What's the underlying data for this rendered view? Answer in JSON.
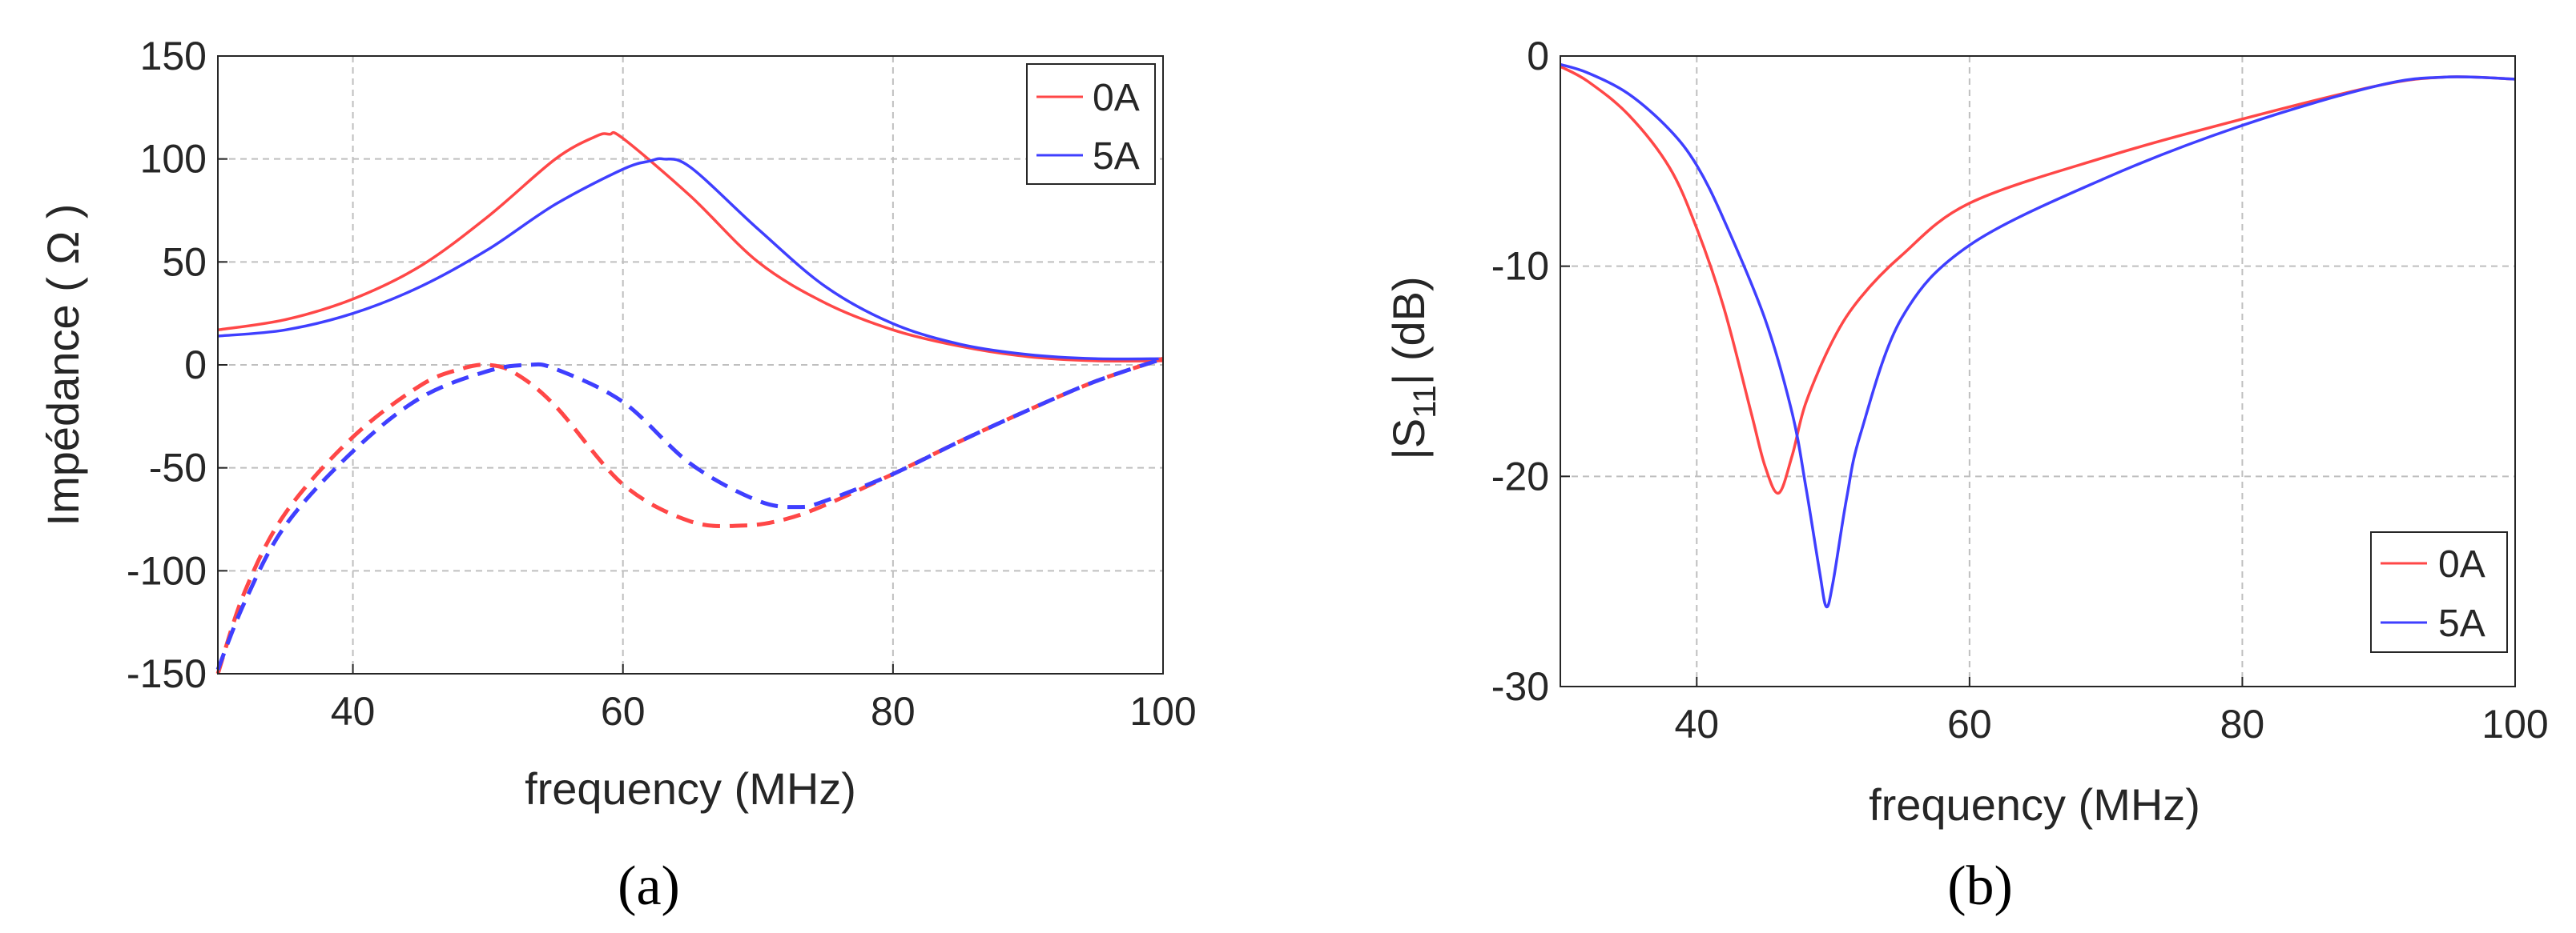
{
  "colors": {
    "series_0A": "#ff4747",
    "series_5A": "#3f3fff",
    "grid": "#bfbfbf",
    "axis": "#262626"
  },
  "chart_data": [
    {
      "type": "line",
      "panel_label": "(a)",
      "title": "",
      "xlabel": "frequency (MHz)",
      "ylabel": "Impédance ( Ω )",
      "xlim": [
        30,
        100
      ],
      "ylim": [
        -150,
        150
      ],
      "xticks": [
        40,
        60,
        80,
        100
      ],
      "xtick_labels": [
        "40",
        "60",
        "80",
        "100"
      ],
      "yticks": [
        150,
        100,
        50,
        0,
        -50,
        -100,
        -150
      ],
      "ytick_labels": [
        "150",
        "100",
        "50",
        "0",
        "-50",
        "-100",
        "-150"
      ],
      "grid": true,
      "legend": {
        "position": "top-right",
        "entries": [
          "0A",
          "5A"
        ]
      },
      "series": [
        {
          "name": "0A",
          "style": "solid",
          "color": "#ff4747",
          "x": [
            30,
            35,
            40,
            45,
            50,
            55,
            58,
            59,
            60,
            65,
            70,
            75,
            80,
            85,
            90,
            95,
            100
          ],
          "y": [
            17,
            22,
            32,
            48,
            72,
            100,
            111,
            112,
            110,
            82,
            50,
            30,
            17,
            9,
            4,
            2,
            2
          ]
        },
        {
          "name": "5A",
          "style": "solid",
          "color": "#3f3fff",
          "x": [
            30,
            35,
            40,
            45,
            50,
            55,
            60,
            62,
            63,
            65,
            70,
            75,
            80,
            85,
            90,
            95,
            100
          ],
          "y": [
            14,
            17,
            25,
            38,
            56,
            78,
            95,
            99,
            100,
            96,
            66,
            38,
            20,
            10,
            5,
            3,
            3
          ]
        },
        {
          "name": "0A",
          "style": "dashed",
          "color": "#ff4747",
          "x": [
            30,
            32,
            35,
            40,
            45,
            48,
            50,
            52,
            55,
            60,
            65,
            69,
            72,
            75,
            80,
            85,
            90,
            95,
            100
          ],
          "y": [
            -150,
            -110,
            -72,
            -35,
            -10,
            -2,
            0,
            -4,
            -20,
            -58,
            -76,
            -78,
            -75,
            -68,
            -53,
            -37,
            -22,
            -8,
            3
          ]
        },
        {
          "name": "5A",
          "style": "dashed",
          "color": "#3f3fff",
          "x": [
            30,
            32,
            35,
            40,
            45,
            50,
            53,
            55,
            60,
            65,
            70,
            73,
            75,
            80,
            85,
            90,
            95,
            100
          ],
          "y": [
            -148,
            -115,
            -78,
            -42,
            -16,
            -3,
            0,
            -2,
            -18,
            -48,
            -66,
            -69,
            -66,
            -53,
            -37,
            -22,
            -8,
            3
          ]
        }
      ]
    },
    {
      "type": "line",
      "panel_label": "(b)",
      "title": "",
      "xlabel": "frequency (MHz)",
      "ylabel_prefix": "|S",
      "ylabel_sub": "11",
      "ylabel_suffix": "| (dB)",
      "xlim": [
        30,
        100
      ],
      "ylim": [
        -30,
        0
      ],
      "xticks": [
        40,
        60,
        80,
        100
      ],
      "xtick_labels": [
        "40",
        "60",
        "80",
        "100"
      ],
      "yticks": [
        0,
        -10,
        -20,
        -30
      ],
      "ytick_labels": [
        "0",
        "-10",
        "-20",
        "-30"
      ],
      "grid": true,
      "legend": {
        "position": "bottom-right",
        "entries": [
          "0A",
          "5A"
        ]
      },
      "series": [
        {
          "name": "0A",
          "style": "solid",
          "color": "#ff4747",
          "x": [
            30,
            32,
            35,
            38,
            40,
            42,
            44,
            45,
            46,
            47,
            48,
            50,
            52,
            55,
            60,
            70,
            80,
            90,
            95,
            100
          ],
          "y": [
            -0.5,
            -1.2,
            -2.8,
            -5.3,
            -8.2,
            -12,
            -17,
            -19.5,
            -20.8,
            -19,
            -16.5,
            -13.5,
            -11.5,
            -9.5,
            -7,
            -4.8,
            -3,
            -1.4,
            -1,
            -1.1
          ]
        },
        {
          "name": "5A",
          "style": "solid",
          "color": "#3f3fff",
          "x": [
            30,
            32,
            35,
            38,
            40,
            42,
            45,
            47,
            48,
            49,
            49.5,
            50,
            51,
            52,
            55,
            60,
            70,
            80,
            90,
            95,
            100
          ],
          "y": [
            -0.4,
            -0.8,
            -1.8,
            -3.5,
            -5.2,
            -7.8,
            -12.5,
            -17,
            -20.5,
            -24.5,
            -26.2,
            -25,
            -21,
            -18,
            -12.5,
            -9,
            -5.8,
            -3.3,
            -1.4,
            -1,
            -1.1
          ]
        }
      ]
    }
  ]
}
